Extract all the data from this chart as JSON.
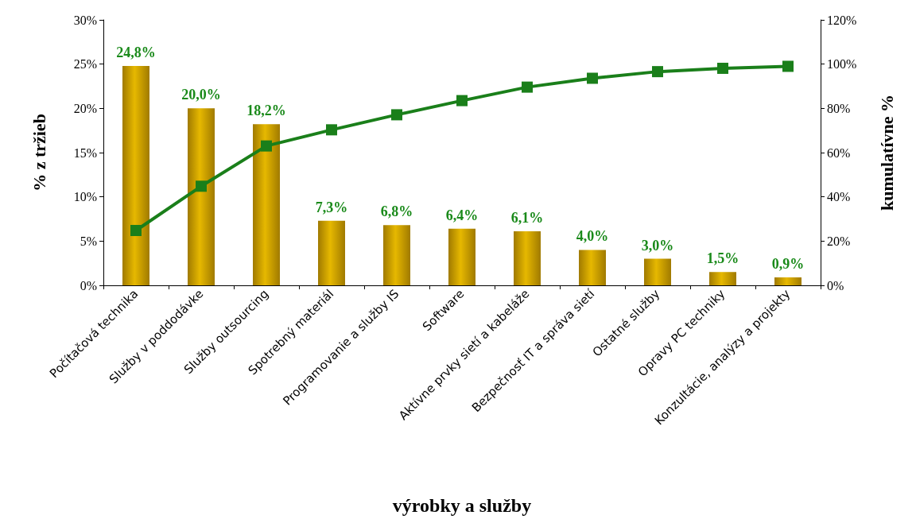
{
  "chart_data": {
    "type": "bar",
    "xlabel": "výrobky a služby",
    "ylabel": "% z tržieb",
    "y2label": "kumulatívne %",
    "categories": [
      "Počítačová technika",
      "Služby v poddodávke",
      "Služby outsourcing",
      "Spotrebný materiál",
      "Programovanie a služby IS",
      "Software",
      "Aktívne prvky sietí a kabeláže",
      "Bezpečnosť IT a správa sietí",
      "Ostatné služby",
      "Opravy PC techniky",
      "Konzultácie, analýzy a projekty"
    ],
    "series": [
      {
        "color": "#e6b800",
        "values": [
          24.8,
          20.0,
          18.2,
          7.3,
          6.8,
          6.4,
          6.1,
          4.0,
          3.0,
          1.5,
          0.9
        ],
        "value_labels": [
          "24,8%",
          "20,0%",
          "18,2%",
          "7,3%",
          "6,8%",
          "6,4%",
          "6,1%",
          "4,0%",
          "3,0%",
          "1,5%",
          "0,9%"
        ]
      },
      {
        "type": "line",
        "axis": "y2",
        "color": "#1a7f1a",
        "marker": "square",
        "values": [
          24.8,
          44.8,
          63.0,
          70.3,
          77.1,
          83.5,
          89.6,
          93.6,
          96.6,
          98.1,
          99.0
        ]
      }
    ],
    "ylim": [
      0,
      30
    ],
    "yticks": [
      {
        "value": 0,
        "label": "0%"
      },
      {
        "value": 5,
        "label": "5%"
      },
      {
        "value": 10,
        "label": "10%"
      },
      {
        "value": 15,
        "label": "15%"
      },
      {
        "value": 20,
        "label": "20%"
      },
      {
        "value": 25,
        "label": "25%"
      },
      {
        "value": 30,
        "label": "30%"
      }
    ],
    "y2lim": [
      0,
      120
    ],
    "y2ticks": [
      {
        "value": 0,
        "label": "0%"
      },
      {
        "value": 20,
        "label": "20%"
      },
      {
        "value": 40,
        "label": "40%"
      },
      {
        "value": 60,
        "label": "60%"
      },
      {
        "value": 80,
        "label": "80%"
      },
      {
        "value": 100,
        "label": "100%"
      },
      {
        "value": 120,
        "label": "120%"
      }
    ],
    "grid": false
  }
}
